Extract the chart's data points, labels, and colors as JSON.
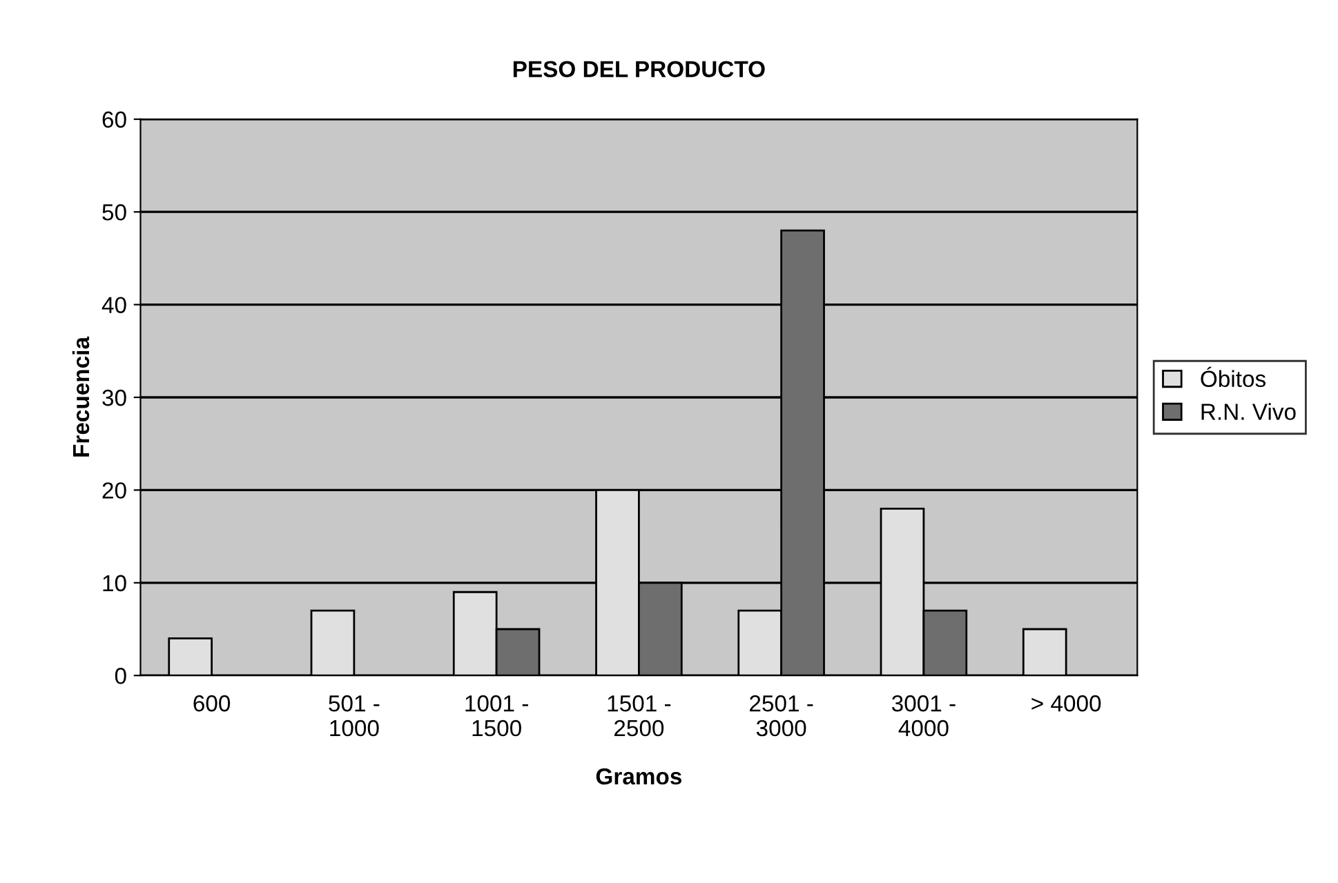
{
  "chart_data": {
    "type": "bar",
    "title": "PESO DEL PRODUCTO",
    "xlabel": "Gramos",
    "ylabel": "Frecuencia",
    "categories": [
      "600",
      "501 -\n1000",
      "1001 -\n1500",
      "1501 -\n2500",
      "2501 -\n3000",
      "3001 -\n4000",
      "> 4000"
    ],
    "series": [
      {
        "name": "Óbitos",
        "color": "#e0e0e0",
        "values": [
          4,
          7,
          9,
          20,
          7,
          18,
          5
        ]
      },
      {
        "name": "R.N. Vivo",
        "color": "#6e6e6e",
        "values": [
          null,
          null,
          5,
          10,
          48,
          7,
          null
        ]
      }
    ],
    "ylim": [
      0,
      60
    ],
    "yticks": [
      0,
      10,
      20,
      30,
      40,
      50,
      60
    ],
    "grid": "y",
    "legend": "right"
  }
}
